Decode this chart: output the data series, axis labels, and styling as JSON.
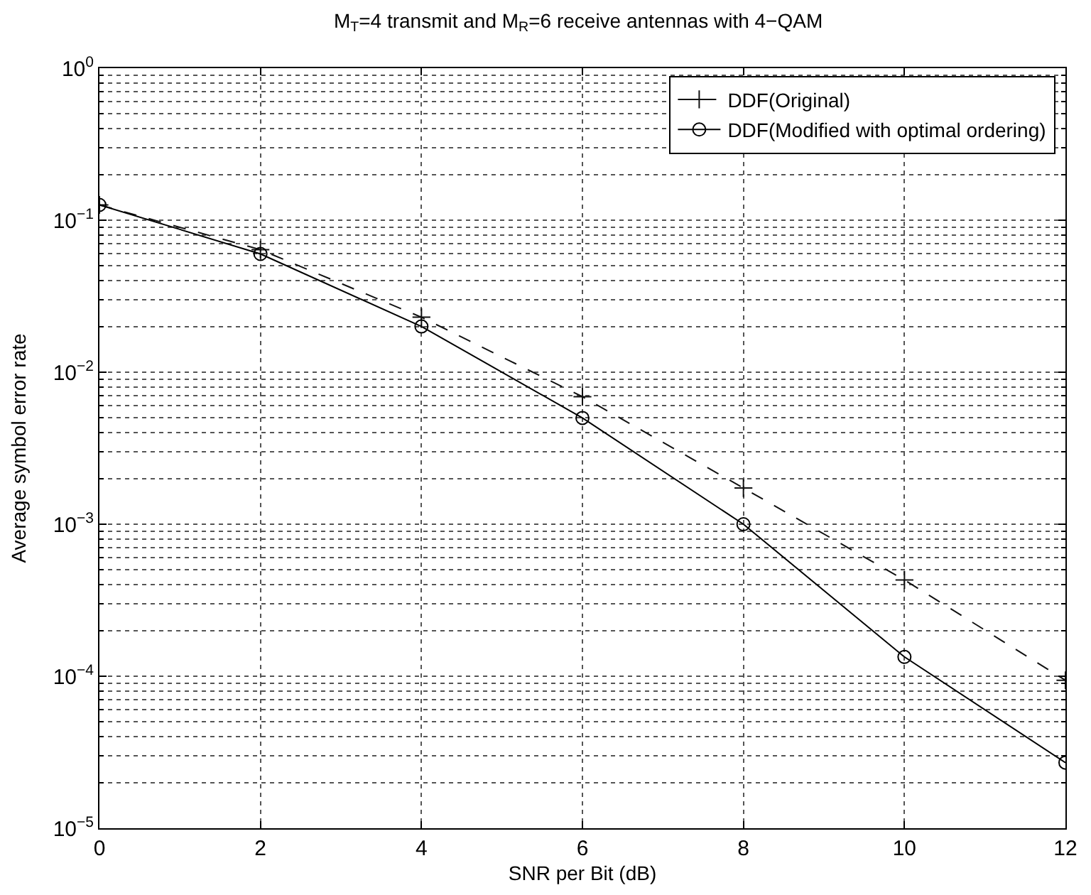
{
  "chart_data": {
    "type": "line",
    "title": "M$_{T}$=4 transmit and M$_{R}$=6 receive antennas with 4−QAM",
    "xlabel": "SNR per Bit (dB)",
    "ylabel": "Average symbol error rate",
    "x": [
      0,
      2,
      4,
      6,
      8,
      10,
      12
    ],
    "series": [
      {
        "name": "DDF(Original)",
        "color": "#111111",
        "marker": "cross",
        "line_style": "dashed",
        "values": [
          0.126,
          0.064,
          0.023,
          0.0069,
          0.00173,
          0.00043,
          9.4e-05
        ]
      },
      {
        "name": "DDF(Modified with optimal ordering)",
        "color": "#000000",
        "marker": "circle",
        "line_style": "solid",
        "values": [
          0.126,
          0.06,
          0.02,
          0.005,
          0.001,
          0.000134,
          2.7e-05
        ]
      }
    ],
    "log": "y",
    "xlim": [
      0,
      12
    ],
    "xticks": [
      0,
      2,
      4,
      6,
      8,
      10,
      12
    ],
    "ylim": [
      1e-05,
      1
    ],
    "yticks": [
      {
        "value": 1e-05,
        "label": "10$^{−5}$"
      },
      {
        "value": 0.0001,
        "label": "10$^{−4}$"
      },
      {
        "value": 0.001,
        "label": "10$^{−3}$"
      },
      {
        "value": 0.01,
        "label": "10$^{−2}$"
      },
      {
        "value": 0.1,
        "label": "10$^{−1}$"
      },
      {
        "value": 1,
        "label": "10$^{0}$"
      }
    ],
    "grid": true,
    "legend": "top right"
  }
}
